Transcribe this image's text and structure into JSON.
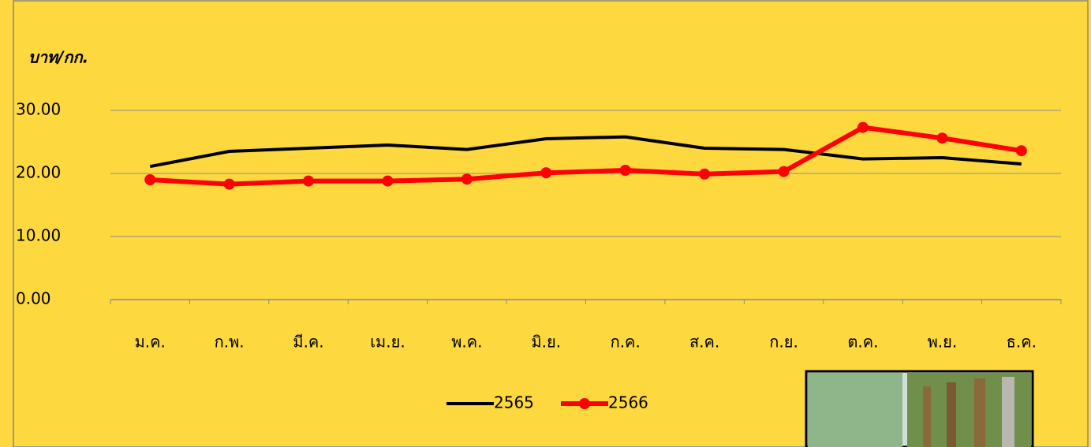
{
  "chart_data": {
    "type": "line",
    "y_label": "บาท/กก.",
    "categories": [
      "ม.ค.",
      "ก.พ.",
      "มี.ค.",
      "เม.ย.",
      "พ.ค.",
      "มิ.ย.",
      "ก.ค.",
      "ส.ค.",
      "ก.ย.",
      "ต.ค.",
      "พ.ย.",
      "ธ.ค."
    ],
    "series": [
      {
        "name": "2565",
        "color": "#000000",
        "markers": false,
        "values": [
          21.1,
          23.5,
          24.0,
          24.5,
          23.8,
          25.5,
          25.8,
          24.0,
          23.8,
          22.3,
          22.5,
          21.5
        ]
      },
      {
        "name": "2566",
        "color": "#ff0000",
        "markers": true,
        "values": [
          19.0,
          18.3,
          18.8,
          18.8,
          19.1,
          20.1,
          20.5,
          19.9,
          20.3,
          27.3,
          25.6,
          23.6
        ]
      }
    ],
    "ylim": [
      0,
      30
    ],
    "yticks": [
      {
        "value": 0,
        "label": "0.00"
      },
      {
        "value": 10,
        "label": "10.00"
      },
      {
        "value": 20,
        "label": "20.00"
      },
      {
        "value": 30,
        "label": "30.00"
      }
    ],
    "grid": true,
    "legend": "bottom"
  }
}
